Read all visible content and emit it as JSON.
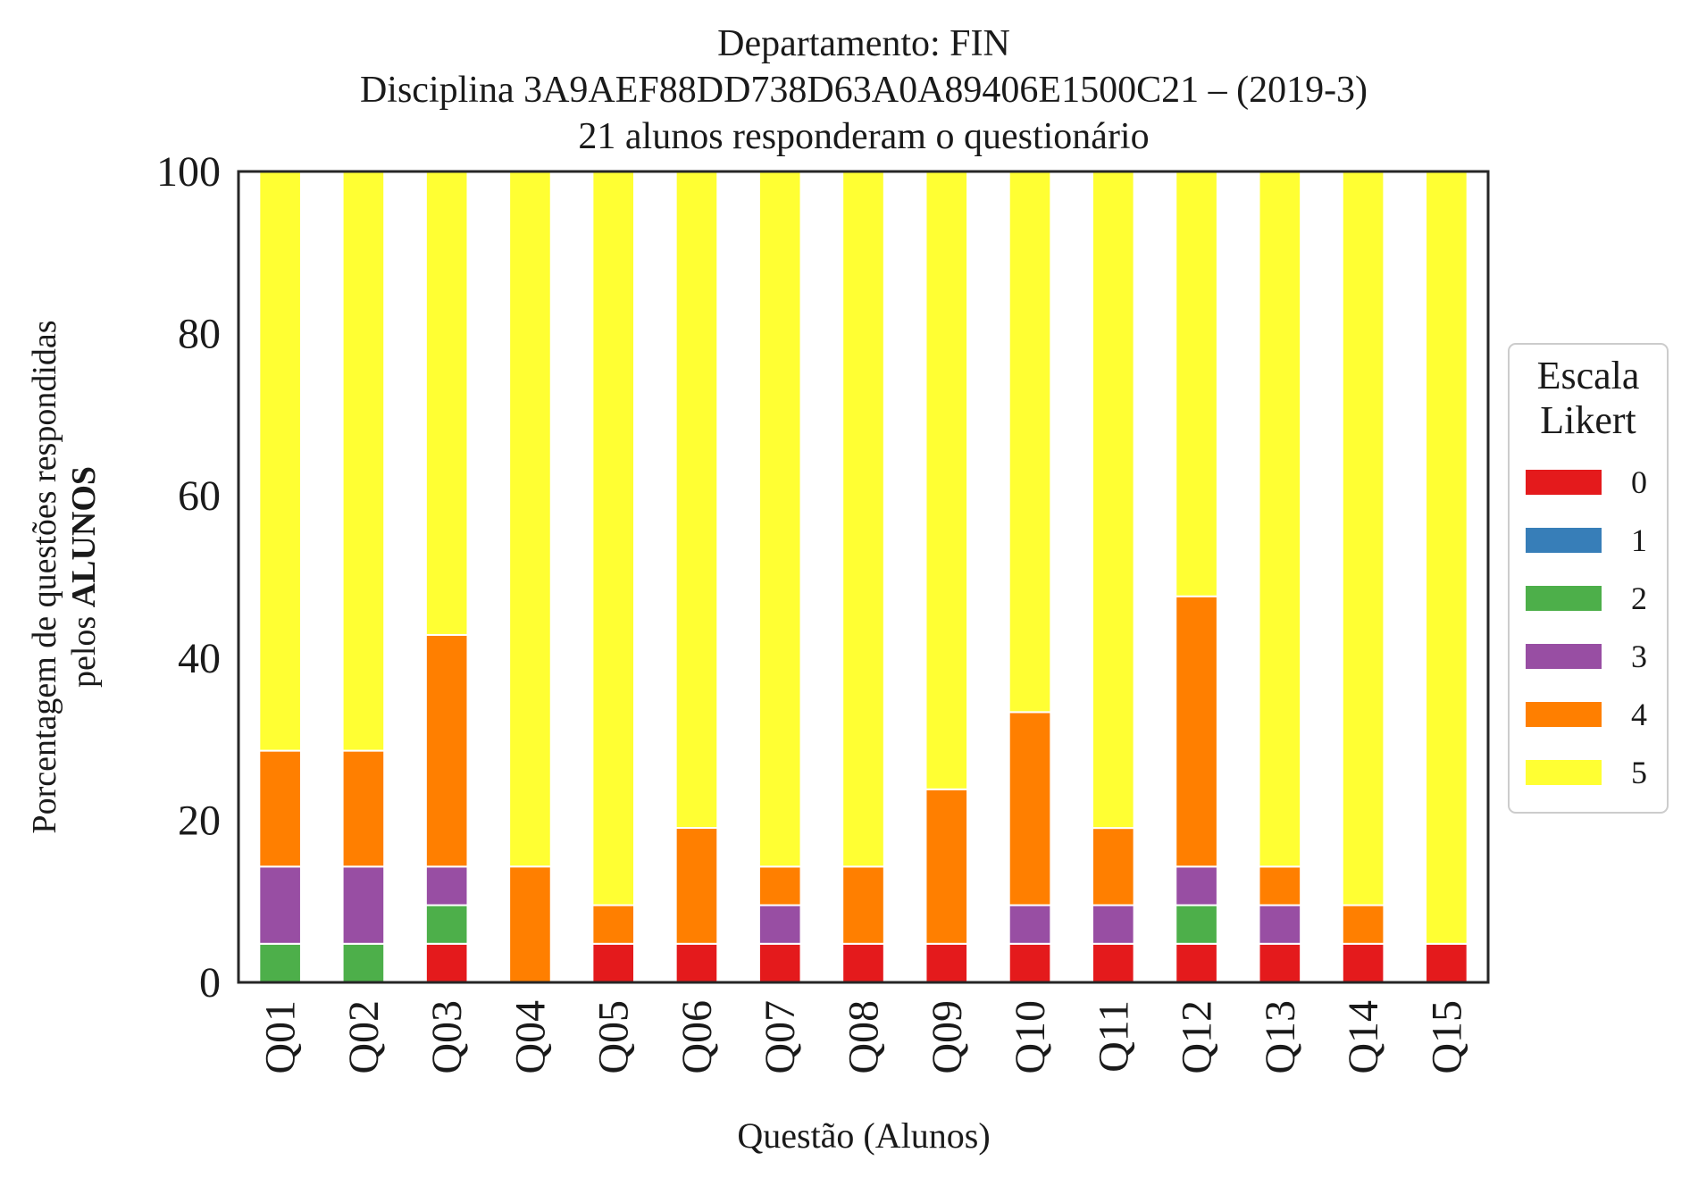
{
  "chart_data": {
    "type": "bar",
    "stacked": true,
    "title_lines": [
      "Departamento: FIN",
      "Disciplina 3A9AEF88DD738D63A0A89406E1500C21 – (2019-3)",
      "21 alunos responderam o questionário"
    ],
    "xlabel": "Questão (Alunos)",
    "ylabel_line1": "Porcentagem de questões respondidas",
    "ylabel_line2_prefix": "pelos ",
    "ylabel_line2_bold": "ALUNOS",
    "ylim": [
      0,
      100
    ],
    "yticks": [
      "0",
      "20",
      "40",
      "60",
      "80",
      "100"
    ],
    "categories": [
      "Q01",
      "Q02",
      "Q03",
      "Q04",
      "Q05",
      "Q06",
      "Q07",
      "Q08",
      "Q09",
      "Q10",
      "Q11",
      "Q12",
      "Q13",
      "Q14",
      "Q15"
    ],
    "legend": {
      "title_line1": "Escala",
      "title_line2": "Likert",
      "position": "right",
      "entries": [
        "0",
        "1",
        "2",
        "3",
        "4",
        "5"
      ]
    },
    "series": [
      {
        "name": "0",
        "color": "#e41a1c",
        "values": [
          0,
          0,
          4.76,
          0,
          4.76,
          4.76,
          4.76,
          4.76,
          4.76,
          4.76,
          4.76,
          4.76,
          4.76,
          4.76,
          4.76
        ]
      },
      {
        "name": "1",
        "color": "#377eb8",
        "values": [
          0,
          0,
          0,
          0,
          0,
          0,
          0,
          0,
          0,
          0,
          0,
          0,
          0,
          0,
          0
        ]
      },
      {
        "name": "2",
        "color": "#4daf4a",
        "values": [
          4.76,
          4.76,
          4.76,
          0,
          0,
          0,
          0,
          0,
          0,
          0,
          0,
          4.76,
          0,
          0,
          0
        ]
      },
      {
        "name": "3",
        "color": "#984ea3",
        "values": [
          9.52,
          9.52,
          4.76,
          0,
          0,
          0,
          4.76,
          0,
          0,
          4.76,
          4.76,
          4.76,
          4.76,
          0,
          0
        ]
      },
      {
        "name": "4",
        "color": "#ff7f00",
        "values": [
          14.29,
          14.29,
          28.57,
          14.29,
          4.76,
          14.29,
          4.76,
          9.52,
          19.05,
          23.81,
          9.52,
          33.33,
          4.76,
          4.76,
          0
        ]
      },
      {
        "name": "5",
        "color": "#ffff33",
        "values": [
          71.43,
          71.43,
          57.14,
          85.71,
          90.48,
          80.95,
          85.71,
          85.71,
          76.19,
          66.67,
          80.95,
          52.38,
          85.71,
          90.48,
          95.24
        ]
      }
    ],
    "grid": false
  }
}
